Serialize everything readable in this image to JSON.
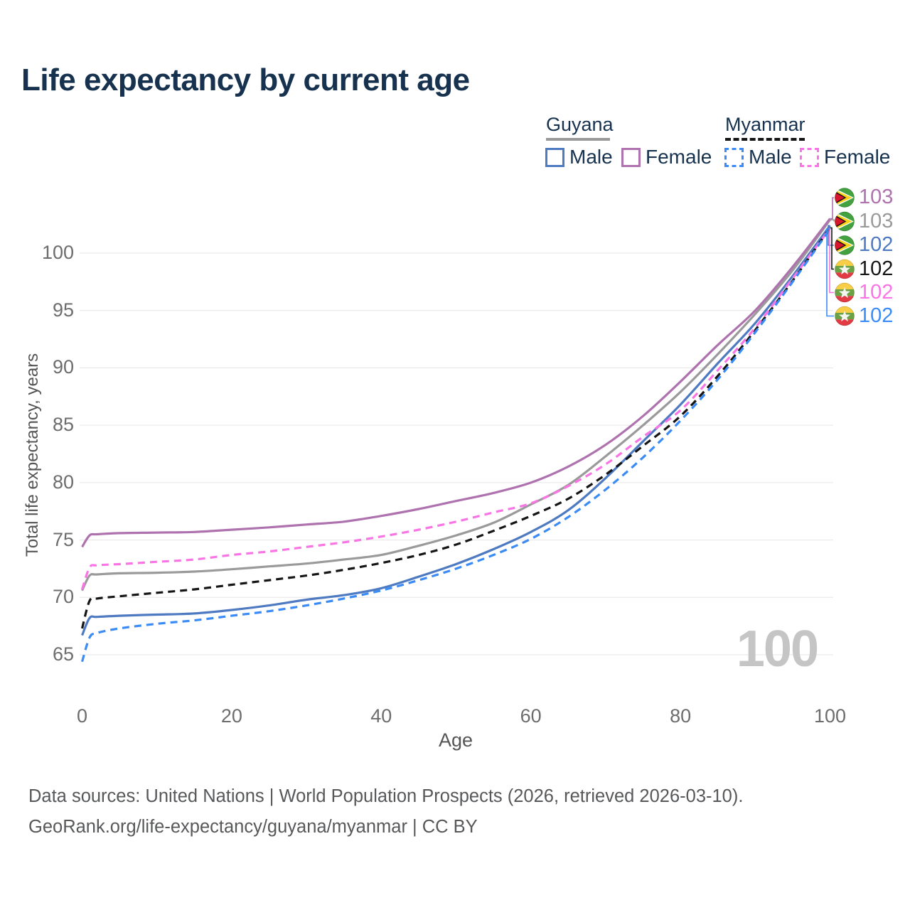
{
  "title": "Life expectancy by current age",
  "legend": {
    "groups": [
      {
        "country": "Guyana",
        "line_style": "solid",
        "underline_color": "#999999",
        "items": [
          {
            "label": "Male",
            "color": "#4e7ac1",
            "dashed": false
          },
          {
            "label": "Female",
            "color": "#ae72ae",
            "dashed": false
          }
        ]
      },
      {
        "country": "Myanmar",
        "line_style": "dashed",
        "underline_color": "#151515",
        "items": [
          {
            "label": "Male",
            "color": "#3b8bf7",
            "dashed": true
          },
          {
            "label": "Female",
            "color": "#f975e5",
            "dashed": true
          }
        ]
      }
    ]
  },
  "watermark": "100",
  "footer": {
    "line1": "Data sources: United Nations | World Population Prospects (2026, retrieved 2026-03-10).",
    "line2": "GeoRank.org/life-expectancy/guyana/myanmar | CC BY"
  },
  "chart_data": {
    "type": "line",
    "title": "Life expectancy by current age",
    "xlabel": "Age",
    "ylabel": "Total life expectancy, years",
    "x_ticks": [
      0,
      20,
      40,
      60,
      80,
      100
    ],
    "y_ticks": [
      65,
      70,
      75,
      80,
      85,
      90,
      95,
      100
    ],
    "xlim": [
      0,
      100
    ],
    "ylim": [
      63.5,
      104
    ],
    "grid": true,
    "legend_position": "top-right",
    "ages": [
      0,
      1,
      2,
      5,
      10,
      15,
      20,
      25,
      30,
      35,
      40,
      45,
      50,
      55,
      60,
      65,
      70,
      75,
      80,
      85,
      90,
      95,
      100
    ],
    "series": [
      {
        "id": "guyana-female",
        "name": "Guyana — Female",
        "country": "Guyana",
        "sex": "Female",
        "flag": "guyana",
        "color": "#ae72ae",
        "dash": "solid",
        "end_label": "103",
        "values": [
          74.4,
          75.4,
          75.5,
          75.6,
          75.65,
          75.7,
          75.9,
          76.1,
          76.35,
          76.6,
          77.1,
          77.7,
          78.4,
          79.1,
          80.0,
          81.4,
          83.3,
          85.8,
          88.8,
          92.0,
          95.0,
          98.8,
          103.0
        ]
      },
      {
        "id": "guyana-all",
        "name": "Guyana — Both sexes",
        "country": "Guyana",
        "sex": "All",
        "flag": "guyana",
        "color": "#9a9a9a",
        "dash": "solid",
        "end_label": "103",
        "values": [
          70.6,
          71.9,
          72.0,
          72.1,
          72.15,
          72.25,
          72.45,
          72.7,
          72.95,
          73.3,
          73.7,
          74.5,
          75.4,
          76.5,
          78.1,
          79.8,
          82.3,
          85.0,
          87.9,
          91.2,
          94.7,
          98.5,
          102.9
        ]
      },
      {
        "id": "guyana-male",
        "name": "Guyana — Male",
        "country": "Guyana",
        "sex": "Male",
        "flag": "guyana",
        "color": "#4e7ac1",
        "dash": "solid",
        "end_label": "102",
        "values": [
          66.7,
          68.2,
          68.3,
          68.4,
          68.5,
          68.6,
          68.9,
          69.3,
          69.8,
          70.2,
          70.8,
          71.8,
          72.9,
          74.2,
          75.7,
          77.6,
          80.4,
          83.6,
          86.8,
          90.4,
          93.9,
          98.0,
          102.4
        ]
      },
      {
        "id": "myanmar-all",
        "name": "Myanmar — Both sexes",
        "country": "Myanmar",
        "sex": "All",
        "flag": "myanmar",
        "color": "#151515",
        "dash": "dashed",
        "end_label": "102",
        "values": [
          67.3,
          69.7,
          69.9,
          70.1,
          70.4,
          70.7,
          71.1,
          71.5,
          71.9,
          72.4,
          73.0,
          73.7,
          74.6,
          75.8,
          77.1,
          78.6,
          80.7,
          83.2,
          85.8,
          89.3,
          93.3,
          97.6,
          102.2
        ]
      },
      {
        "id": "myanmar-female",
        "name": "Myanmar — Female",
        "country": "Myanmar",
        "sex": "Female",
        "flag": "myanmar",
        "color": "#f975e5",
        "dash": "dashed",
        "end_label": "102",
        "values": [
          70.7,
          72.6,
          72.8,
          72.9,
          73.1,
          73.3,
          73.7,
          74.0,
          74.4,
          74.8,
          75.3,
          75.9,
          76.6,
          77.4,
          78.2,
          79.7,
          81.6,
          84.0,
          86.3,
          89.8,
          93.5,
          97.8,
          102.15
        ]
      },
      {
        "id": "myanmar-male",
        "name": "Myanmar — Male",
        "country": "Myanmar",
        "sex": "Male",
        "flag": "myanmar",
        "color": "#3b8bf7",
        "dash": "dashed",
        "end_label": "102",
        "values": [
          64.4,
          66.5,
          66.9,
          67.3,
          67.7,
          68.0,
          68.4,
          68.8,
          69.3,
          69.9,
          70.6,
          71.5,
          72.5,
          73.7,
          75.1,
          77.0,
          79.4,
          82.2,
          85.4,
          89.0,
          93.1,
          97.5,
          102.1
        ]
      }
    ]
  }
}
